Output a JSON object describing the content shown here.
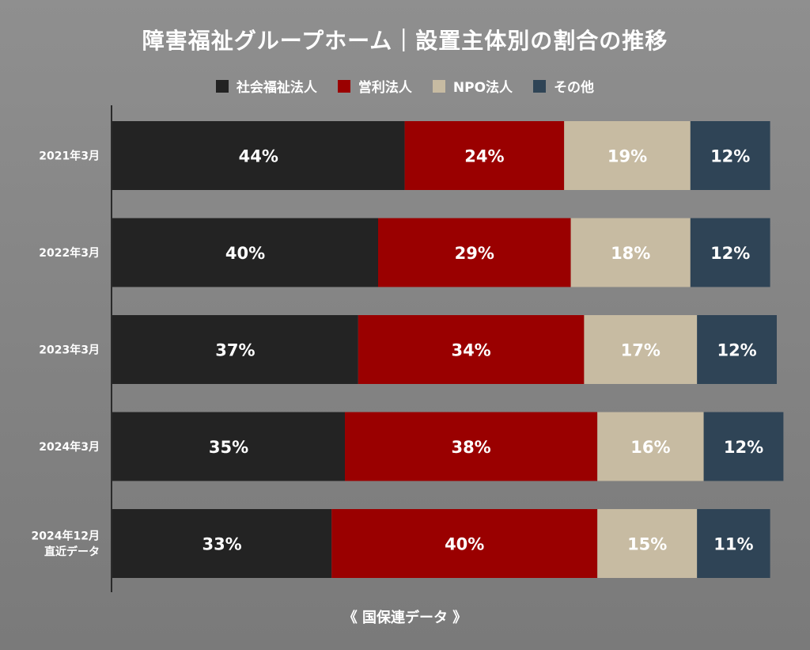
{
  "title": "障害福祉グループホーム｜設置主体別の割合の推移",
  "source": "《 国保連データ 》",
  "colors": {
    "社会福祉法人": "#232323",
    "営利法人": "#9a0000",
    "NPO法人": "#c7bba2",
    "その他": "#2f4456"
  },
  "chart_data": {
    "type": "bar",
    "orientation": "horizontal",
    "stacked": true,
    "categories": [
      "2021年3月",
      "2022年3月",
      "2023年3月",
      "2024年3月",
      "2024年12月\n直近データ"
    ],
    "series": [
      {
        "name": "社会福祉法人",
        "values": [
          44,
          40,
          37,
          35,
          33
        ]
      },
      {
        "name": "営利法人",
        "values": [
          24,
          29,
          34,
          38,
          40
        ]
      },
      {
        "name": "NPO法人",
        "values": [
          19,
          18,
          17,
          16,
          15
        ]
      },
      {
        "name": "その他",
        "values": [
          12,
          12,
          12,
          12,
          11
        ]
      }
    ],
    "value_labels": [
      [
        "44%",
        "24%",
        "19%",
        "12%"
      ],
      [
        "40%",
        "29%",
        "18%",
        "12%"
      ],
      [
        "37%",
        "34%",
        "17%",
        "12%"
      ],
      [
        "35%",
        "38%",
        "16%",
        "12%"
      ],
      [
        "33%",
        "40%",
        "15%",
        "11%"
      ]
    ],
    "title": "障害福祉グループホーム｜設置主体別の割合の推移",
    "xlabel": "",
    "ylabel": "",
    "legend": "top-center",
    "grid": false
  }
}
